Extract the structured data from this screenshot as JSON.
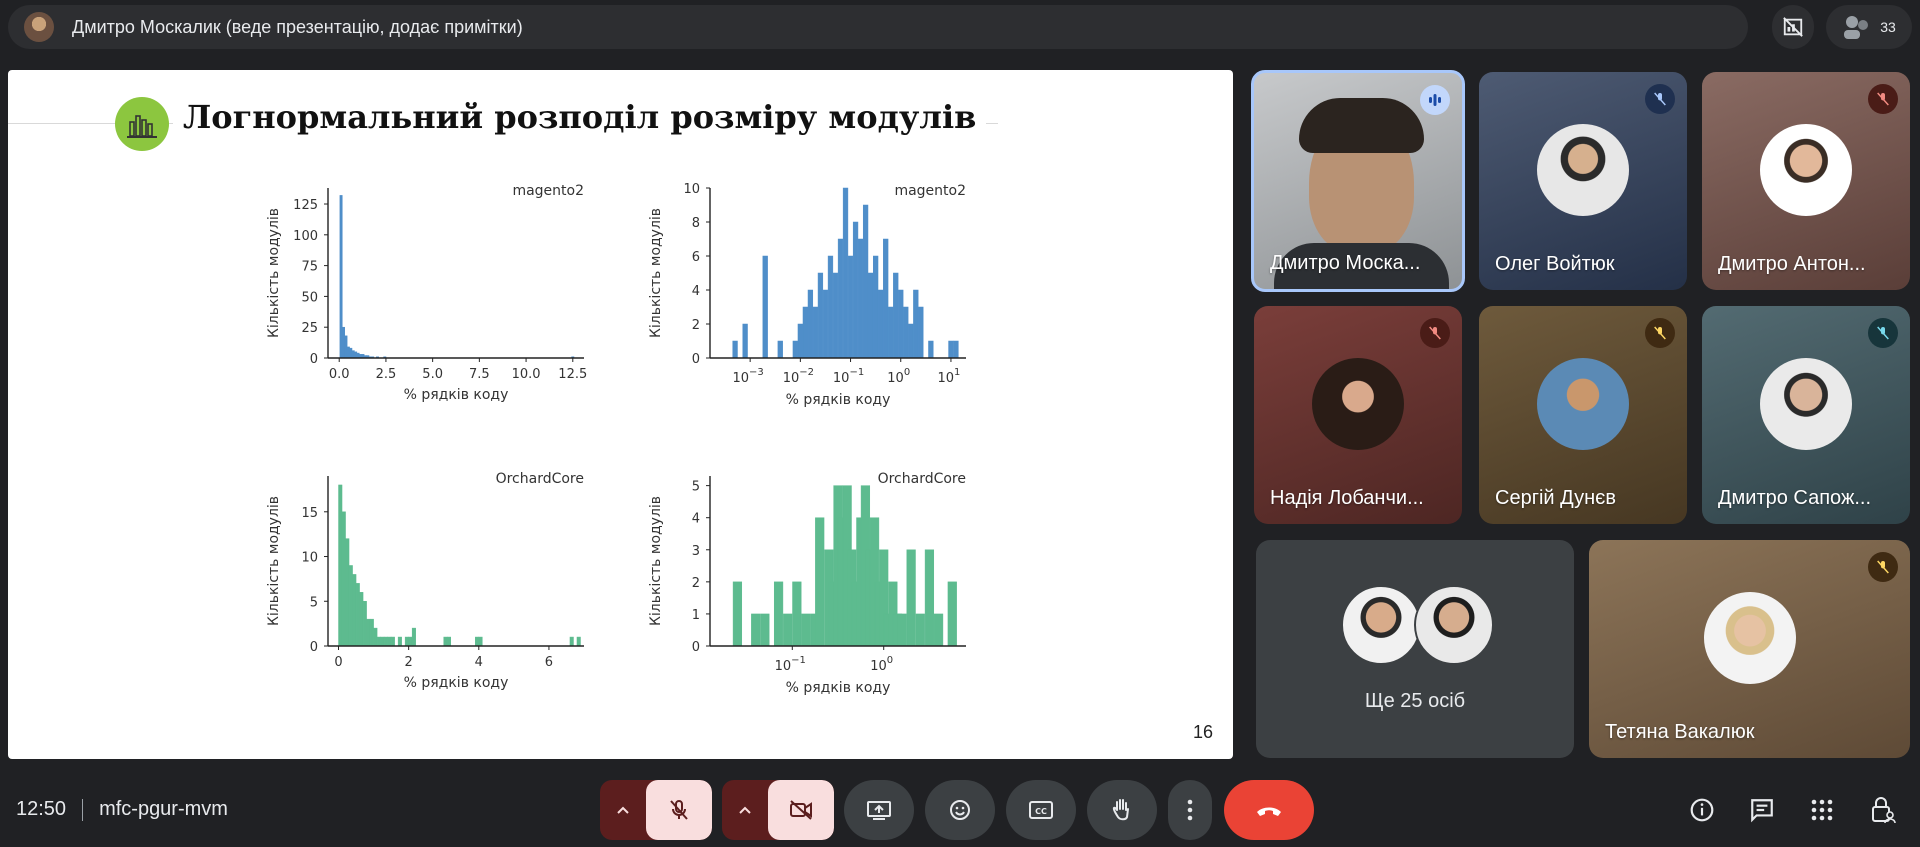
{
  "meeting": {
    "presenter_text": "Дмитро Москалик (веде презентацію, додає примітки)",
    "participant_count": "33",
    "time": "12:50",
    "code": "mfc-pgur-mvm"
  },
  "slide": {
    "title": "Логнормальний розподіл розміру модулів",
    "page_number": "16"
  },
  "chart_data": [
    {
      "type": "bar",
      "title": "magento2",
      "xlabel": "% рядків коду",
      "ylabel": "Кількість модулів",
      "xticks": [
        "0.0",
        "2.5",
        "5.0",
        "7.5",
        "10.0",
        "12.5"
      ],
      "yticks": [
        "0",
        "25",
        "50",
        "75",
        "100",
        "125"
      ],
      "xlim": [
        -0.6,
        13.1
      ],
      "ylim": [
        0,
        138
      ],
      "color": "#4f8ec9",
      "bin_width": 0.13,
      "x": [
        0.1,
        0.23,
        0.36,
        0.49,
        0.62,
        0.75,
        0.88,
        1.01,
        1.14,
        1.27,
        1.4,
        1.53,
        1.66,
        1.79,
        2.05,
        2.44,
        12.5
      ],
      "values": [
        132,
        25,
        18,
        9,
        8,
        6,
        5,
        4,
        3,
        3,
        2,
        2,
        1,
        1,
        1,
        1,
        1
      ]
    },
    {
      "type": "bar",
      "title": "magento2",
      "xlabel": "% рядків коду",
      "ylabel": "Кількість модулів",
      "log_x": true,
      "xticks": [
        "10^-3",
        "10^-2",
        "10^-1",
        "10^0",
        "10^1"
      ],
      "yticks": [
        "0",
        "2",
        "4",
        "6",
        "8",
        "10"
      ],
      "xlim": [
        -3.8,
        1.3
      ],
      "ylim": [
        0,
        10
      ],
      "color": "#4f8ec9",
      "x_log": [
        -3.3,
        -3.1,
        -2.7,
        -2.4,
        -2.1,
        -2.0,
        -1.9,
        -1.8,
        -1.7,
        -1.6,
        -1.5,
        -1.4,
        -1.3,
        -1.2,
        -1.1,
        -1.0,
        -0.9,
        -0.8,
        -0.7,
        -0.6,
        -0.5,
        -0.4,
        -0.3,
        -0.2,
        -0.1,
        0.0,
        0.1,
        0.2,
        0.3,
        0.4,
        0.6,
        1.0,
        1.1
      ],
      "values": [
        1,
        2,
        6,
        1,
        1,
        2,
        3,
        4,
        3,
        5,
        4,
        6,
        5,
        7,
        10,
        6,
        8,
        7,
        9,
        5,
        6,
        4,
        7,
        3,
        5,
        4,
        3,
        2,
        4,
        3,
        1,
        1,
        1
      ]
    },
    {
      "type": "bar",
      "title": "OrchardCore",
      "xlabel": "% рядків коду",
      "ylabel": "Кількість модулів",
      "xticks": [
        "0",
        "2",
        "4",
        "6"
      ],
      "yticks": [
        "0",
        "5",
        "10",
        "15"
      ],
      "xlim": [
        -0.3,
        7.0
      ],
      "ylim": [
        0,
        19
      ],
      "color": "#5dbb8f",
      "bin_width": 0.1,
      "x": [
        0.05,
        0.15,
        0.25,
        0.35,
        0.45,
        0.55,
        0.65,
        0.75,
        0.85,
        0.95,
        1.05,
        1.15,
        1.25,
        1.35,
        1.45,
        1.55,
        1.75,
        1.95,
        2.05,
        2.15,
        3.05,
        3.15,
        3.95,
        4.05,
        6.65,
        6.85
      ],
      "values": [
        18,
        15,
        12,
        9,
        8,
        7,
        6,
        5,
        3,
        3,
        2,
        1,
        1,
        1,
        1,
        1,
        1,
        1,
        1,
        2,
        1,
        1,
        1,
        1,
        1,
        1
      ]
    },
    {
      "type": "bar",
      "title": "OrchardCore",
      "xlabel": "% рядків коду",
      "ylabel": "Кількість модулів",
      "log_x": true,
      "xticks": [
        "10^-1",
        "10^0"
      ],
      "yticks": [
        "0",
        "1",
        "2",
        "3",
        "4",
        "5"
      ],
      "xlim": [
        -1.9,
        0.9
      ],
      "ylim": [
        0,
        5.3
      ],
      "color": "#5dbb8f",
      "x_log": [
        -1.6,
        -1.4,
        -1.3,
        -1.15,
        -1.05,
        -0.95,
        -0.85,
        -0.75,
        -0.7,
        -0.6,
        -0.55,
        -0.5,
        -0.45,
        -0.4,
        -0.35,
        -0.3,
        -0.25,
        -0.2,
        -0.15,
        -0.1,
        -0.05,
        0.0,
        0.05,
        0.1,
        0.15,
        0.2,
        0.3,
        0.4,
        0.5,
        0.6,
        0.75
      ],
      "values": [
        2,
        1,
        1,
        2,
        1,
        2,
        1,
        1,
        4,
        3,
        2,
        5,
        4,
        5,
        3,
        2,
        4,
        5,
        3,
        4,
        2,
        3,
        1,
        2,
        1,
        1,
        3,
        1,
        3,
        1,
        2
      ]
    }
  ],
  "participants": [
    {
      "name": "Дмитро Моска...",
      "state": "speaking"
    },
    {
      "name": "Олег Войтюк",
      "state": "muted"
    },
    {
      "name": "Дмитро Антон...",
      "state": "muted"
    },
    {
      "name": "Надія Лобанчи...",
      "state": "muted"
    },
    {
      "name": "Сергій Дунєв",
      "state": "muted"
    },
    {
      "name": "Дмитро Сапож...",
      "state": "muted"
    },
    {
      "name": "Ще 25 осіб",
      "state": "group"
    },
    {
      "name": "Тетяна Вакалюк",
      "state": "muted"
    }
  ],
  "colors": {
    "end_call": "#ea4335",
    "mic_off_bg": "#f9dede",
    "split_bg": "#5c1e1e",
    "tile_grey": "#3c4043"
  }
}
